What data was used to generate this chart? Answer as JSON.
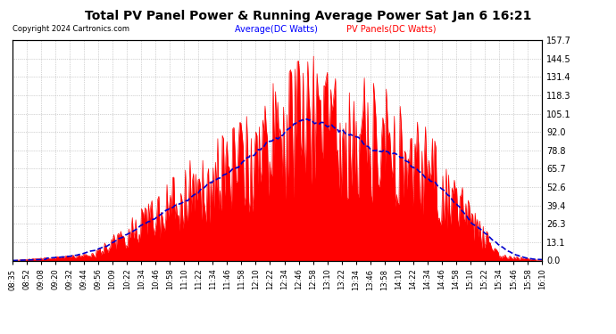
{
  "title": "Total PV Panel Power & Running Average Power Sat Jan 6 16:21",
  "copyright": "Copyright 2024 Cartronics.com",
  "legend_avg": "Average(DC Watts)",
  "legend_pv": "PV Panels(DC Watts)",
  "yticks": [
    0.0,
    13.1,
    26.3,
    39.4,
    52.6,
    65.7,
    78.8,
    92.0,
    105.1,
    118.3,
    131.4,
    144.5,
    157.7
  ],
  "ymax": 157.7,
  "ymin": 0.0,
  "bar_color": "#ff0000",
  "avg_line_color": "#0000cc",
  "title_color": "#000000",
  "copyright_color": "#000000",
  "legend_avg_color": "#0000ff",
  "legend_pv_color": "#ff0000",
  "bg_color": "#ffffff",
  "grid_color": "#aaaaaa",
  "x_tick_labels": [
    "08:35",
    "08:52",
    "09:08",
    "09:20",
    "09:32",
    "09:44",
    "09:56",
    "10:09",
    "10:22",
    "10:34",
    "10:46",
    "10:58",
    "11:10",
    "11:22",
    "11:34",
    "11:46",
    "11:58",
    "12:10",
    "12:22",
    "12:34",
    "12:46",
    "12:58",
    "13:10",
    "13:22",
    "13:34",
    "13:46",
    "13:58",
    "14:10",
    "14:22",
    "14:34",
    "14:46",
    "14:58",
    "15:10",
    "15:22",
    "15:34",
    "15:46",
    "15:58",
    "16:10"
  ]
}
